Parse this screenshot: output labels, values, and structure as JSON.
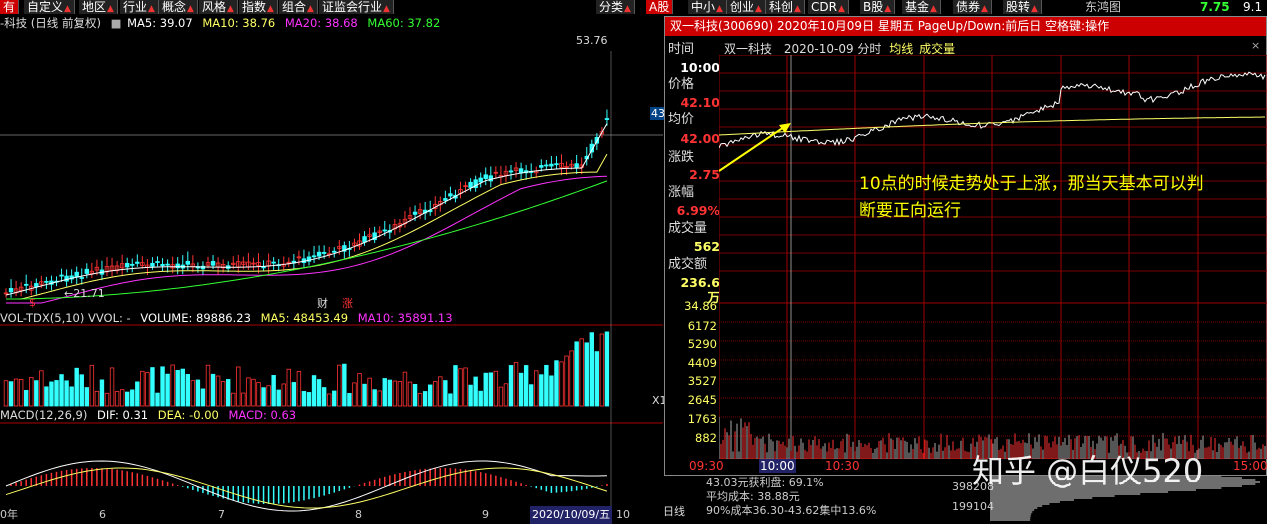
{
  "tabbar": {
    "items": [
      {
        "label": "有",
        "red": true
      },
      {
        "label": "自定义"
      },
      {
        "label": "地区"
      },
      {
        "label": "行业"
      },
      {
        "label": "概念"
      },
      {
        "label": "风格"
      },
      {
        "label": "指数"
      },
      {
        "label": "组合"
      },
      {
        "label": "证监会行业"
      },
      {
        "label": "分类"
      },
      {
        "label": "A股",
        "red": true
      },
      {
        "label": "中小"
      },
      {
        "label": "创业"
      },
      {
        "label": "科创"
      },
      {
        "label": "CDR"
      },
      {
        "label": "B股"
      },
      {
        "label": "基金"
      },
      {
        "label": "债券"
      },
      {
        "label": "股转"
      }
    ],
    "right_title": "东鸿图",
    "right_price": "7.75",
    "right_extra": "9.1"
  },
  "kchart": {
    "title": "-科技 (日线 前复权)",
    "ma5": "MA5: 39.07",
    "ma10": "MA10: 38.76",
    "ma20": "MA20: 38.68",
    "ma60": "MA60: 37.82",
    "high_label": "53.76",
    "low_label": "21.71",
    "right_price_tag": "43",
    "marker_s": "$",
    "marker_cai": "财",
    "marker_zhang": "涨",
    "vol_line": "VOL-TDX(5,10)  VVOL: -",
    "volume": "VOLUME: 89886.23",
    "vol_ma5": "MA5: 48453.49",
    "vol_ma10": "MA10: 35891.13",
    "vol_right_tag": "X1",
    "macd_title": "MACD(12,26,9)",
    "macd_dif": "DIF: 0.31",
    "macd_dea": "DEA: -0.00",
    "macd_val": "MACD: 0.63",
    "date_labels": [
      "0年",
      "6",
      "7",
      "8",
      "9",
      "10"
    ],
    "current_date": "2020/10/09/五",
    "period_label": "日线",
    "below_info": [
      "43.03元获利盘: 69.1%",
      "平均成本: 38.88元",
      "90%成本36.30-43.62集中13.6%"
    ],
    "below_vols": [
      "398208",
      "199104"
    ]
  },
  "minute": {
    "title": "双一科技(300690) 2020年10月09日 星期五 PageUp/Down:前后日 空格键:操作",
    "subtitle_name": "双一科技",
    "subtitle_date": "2020-10-09 分时",
    "subtitle_avg": "均线",
    "subtitle_vol": "成交量",
    "close_icon": "×",
    "info": {
      "time_label": "时间",
      "time_value": "10:00",
      "price_label": "价格",
      "price_value": "42.10",
      "avg_label": "均价",
      "avg_value": "42.00",
      "chg_label": "涨跌",
      "chg_value": "2.75",
      "pct_label": "涨幅",
      "pct_value": "6.99%",
      "vol_label": "成交量",
      "vol_value": "562",
      "amt_label": "成交额",
      "amt_value": "236.6万"
    },
    "vol_axis": [
      "34.86",
      "6172",
      "5290",
      "4409",
      "3527",
      "2645",
      "1763",
      "882"
    ],
    "time_axis": [
      "09:30",
      "10:00",
      "10:30",
      "15:00"
    ],
    "annotation_line1": "10点的时候走势处于上涨，那当天基本可以判",
    "annotation_line2": "断要正向运行",
    "watermark": "知乎 @白仪520",
    "colors": {
      "up": "#ff3333",
      "down": "#33ffff",
      "avg": "#ffff66",
      "grid": "#a00000"
    }
  }
}
